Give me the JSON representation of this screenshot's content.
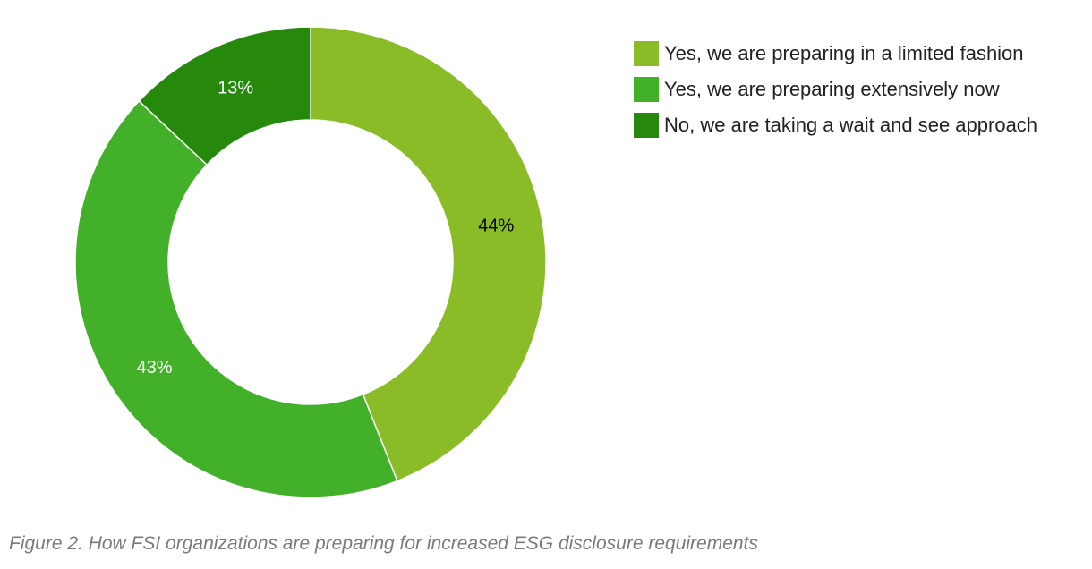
{
  "chart_data": {
    "type": "pie",
    "variant": "donut",
    "categories": [
      "Yes, we are preparing in a limited fashion",
      "Yes, we are preparing extensively now",
      "No, we are taking a wait and see approach"
    ],
    "values": [
      44,
      43,
      13
    ],
    "value_labels": [
      "44%",
      "43%",
      "13%"
    ],
    "colors": [
      "#89bc27",
      "#43b02a",
      "#26890c"
    ],
    "label_colors": [
      "#000000",
      "#ffffff",
      "#ffffff"
    ],
    "legend_position": "right",
    "start_angle": "12 o'clock",
    "direction": "clockwise"
  },
  "caption": "Figure 2. How FSI organizations are preparing for increased ESG disclosure requirements"
}
